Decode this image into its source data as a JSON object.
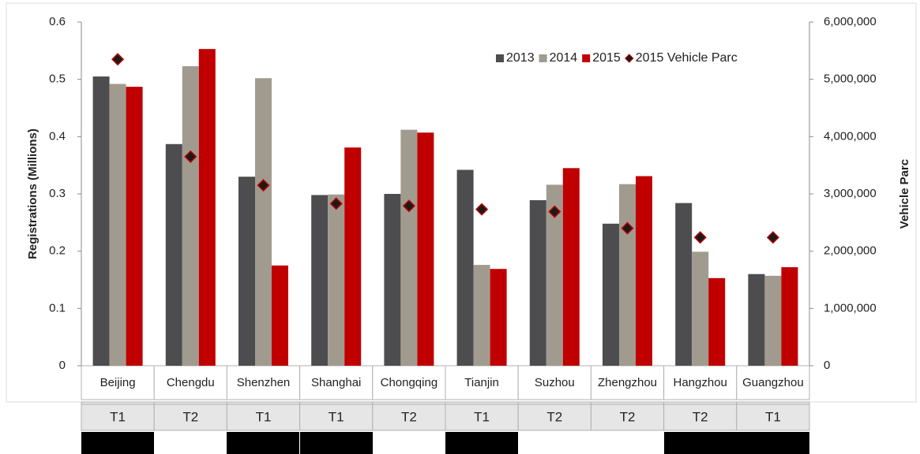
{
  "chart_data": {
    "type": "bar",
    "y_label": "Registrations (Millions)",
    "y2_label": "Vehicle Parc",
    "categories": [
      "Beijing",
      "Chengdu",
      "Shenzhen",
      "Shanghai",
      "Chongqing",
      "Tianjin",
      "Suzhou",
      "Zhengzhou",
      "Hangzhou",
      "Guangzhou"
    ],
    "tiers": [
      "T1",
      "T2",
      "T1",
      "T1",
      "T2",
      "T1",
      "T2",
      "T2",
      "T2",
      "T1"
    ],
    "series": [
      {
        "name": "2013",
        "color": "#4d4d4f",
        "values": [
          0.505,
          0.387,
          0.33,
          0.298,
          0.3,
          0.342,
          0.289,
          0.248,
          0.284,
          0.16
        ]
      },
      {
        "name": "2014",
        "color": "#a19b8f",
        "values": [
          0.492,
          0.523,
          0.502,
          0.299,
          0.412,
          0.176,
          0.316,
          0.317,
          0.199,
          0.157
        ]
      },
      {
        "name": "2015",
        "color": "#c00000",
        "values": [
          0.487,
          0.553,
          0.175,
          0.381,
          0.407,
          0.169,
          0.345,
          0.331,
          0.153,
          0.172
        ]
      },
      {
        "name": "2015 Vehicle Parc",
        "color": "#1a1a1a",
        "axis": "y2",
        "marker": "diamond",
        "values": [
          5350000,
          3650000,
          3150000,
          2830000,
          2790000,
          2730000,
          2690000,
          2400000,
          2240000,
          2240000
        ]
      }
    ],
    "ylim": [
      0,
      0.6
    ],
    "yticks": [
      0,
      0.1,
      0.2,
      0.3,
      0.4,
      0.5,
      0.6
    ],
    "y2lim": [
      0,
      6000000
    ],
    "y2ticks": [
      0,
      {
        "value": 1000000,
        "label": "1,000,000"
      },
      {
        "value": 2000000,
        "label": "2,000,000"
      },
      {
        "value": 3000000,
        "label": "3,000,000"
      },
      {
        "value": 4000000,
        "label": "4,000,000"
      },
      {
        "value": 5000000,
        "label": "5,000,000"
      },
      {
        "value": 6000000,
        "label": "6,000,000"
      }
    ],
    "legend": "top-right"
  }
}
